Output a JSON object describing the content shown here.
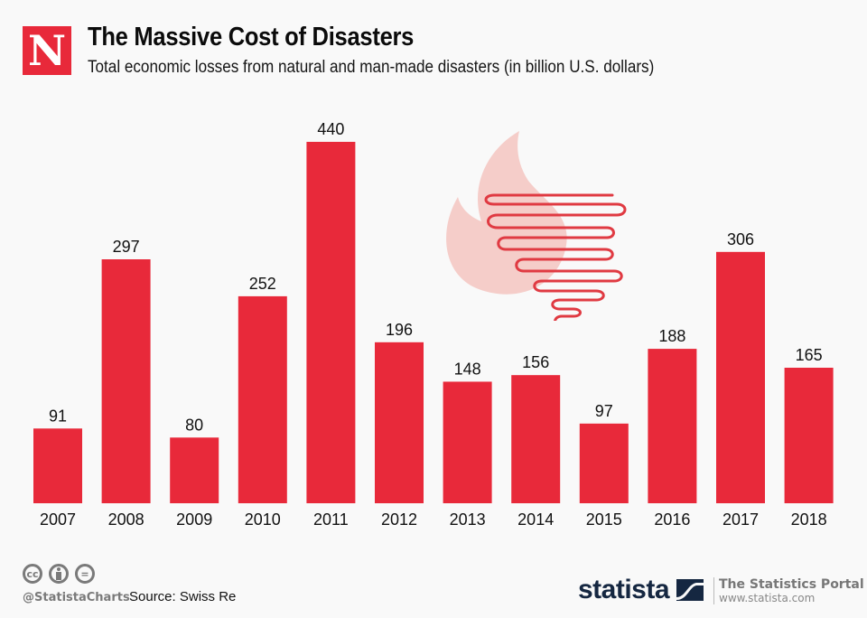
{
  "header": {
    "logo_letter": "N",
    "title": "The Massive Cost of Disasters",
    "subtitle": "Total economic losses from natural and man-made disasters (in billion U.S. dollars)"
  },
  "chart_data": {
    "type": "bar",
    "title": "The Massive Cost of Disasters",
    "subtitle": "Total economic losses from natural and man-made disasters (in billion U.S. dollars)",
    "xlabel": "",
    "ylabel": "",
    "categories": [
      "2007",
      "2008",
      "2009",
      "2010",
      "2011",
      "2012",
      "2013",
      "2014",
      "2015",
      "2016",
      "2017",
      "2018"
    ],
    "values": [
      91,
      297,
      80,
      252,
      440,
      196,
      148,
      156,
      97,
      188,
      306,
      165
    ],
    "ylim": [
      0,
      440
    ],
    "grid": false,
    "legend": "none",
    "data_labels": true,
    "bar_color": "#e8293a"
  },
  "illustration": {
    "icons": [
      "fire-icon",
      "tornado-icon"
    ],
    "fire_color": "#f5cdc9",
    "tornado_color": "#e03a42"
  },
  "footer": {
    "license_icons": [
      "cc-icon",
      "attribution-icon",
      "no-derivatives-icon"
    ],
    "cc_label": "cc",
    "nd_label": "=",
    "handle": "@StatistaCharts",
    "source": "Source: Swiss Re",
    "brand": "statista",
    "portal_title": "The Statistics Portal",
    "portal_url": "www.statista.com"
  }
}
